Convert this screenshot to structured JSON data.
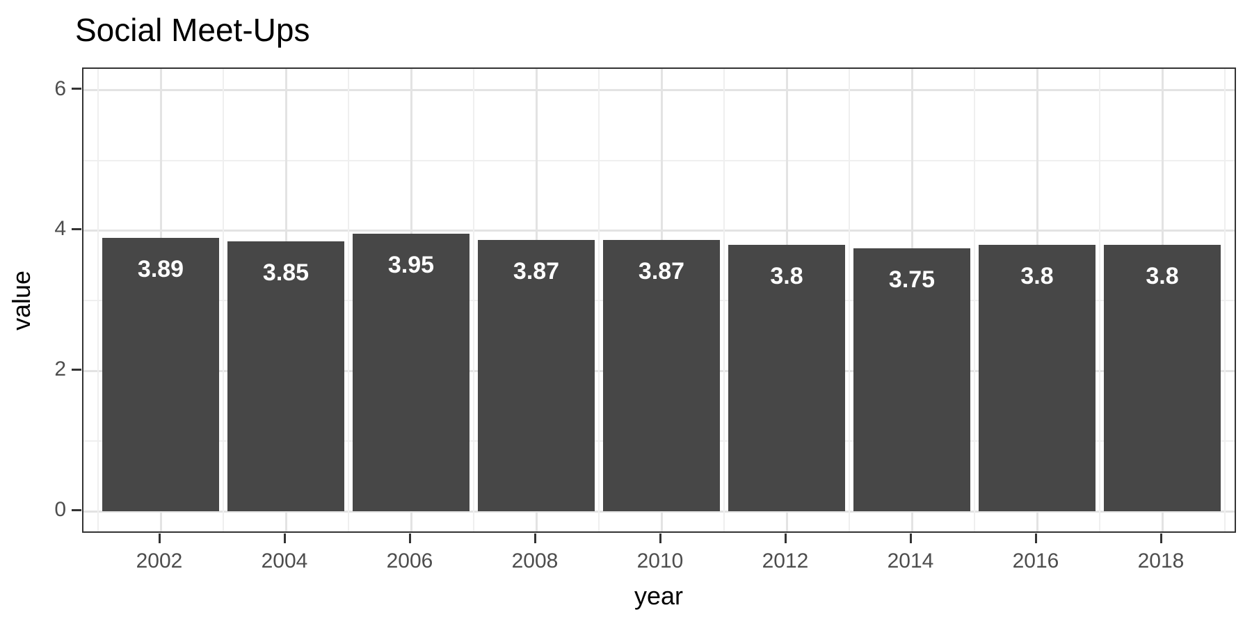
{
  "chart_data": {
    "type": "bar",
    "title": "Social Meet-Ups",
    "xlabel": "year",
    "ylabel": "value",
    "categories": [
      "2002",
      "2004",
      "2006",
      "2008",
      "2010",
      "2012",
      "2014",
      "2016",
      "2018"
    ],
    "values": [
      3.89,
      3.85,
      3.95,
      3.87,
      3.87,
      3.8,
      3.75,
      3.8,
      3.8
    ],
    "bar_labels": [
      "3.89",
      "3.85",
      "3.95",
      "3.87",
      "3.87",
      "3.8",
      "3.75",
      "3.8",
      "3.8"
    ],
    "ytick_labels": [
      "0",
      "2",
      "4",
      "6"
    ],
    "yticks": [
      0,
      2,
      4,
      6
    ],
    "yminor_ticks": [
      1,
      3,
      5
    ],
    "ylim": [
      0,
      6.3
    ],
    "grid": "on",
    "legend": "none",
    "colors": {
      "bar_fill": "#474747",
      "bar_label": "#ffffff",
      "grid_major": "#e3e3e3",
      "grid_minor": "#efefef",
      "tick_label": "#4d4d4d",
      "axis_title": "#000000",
      "title_color": "#000000",
      "panel_border": "#333333",
      "background": "#ffffff"
    }
  }
}
